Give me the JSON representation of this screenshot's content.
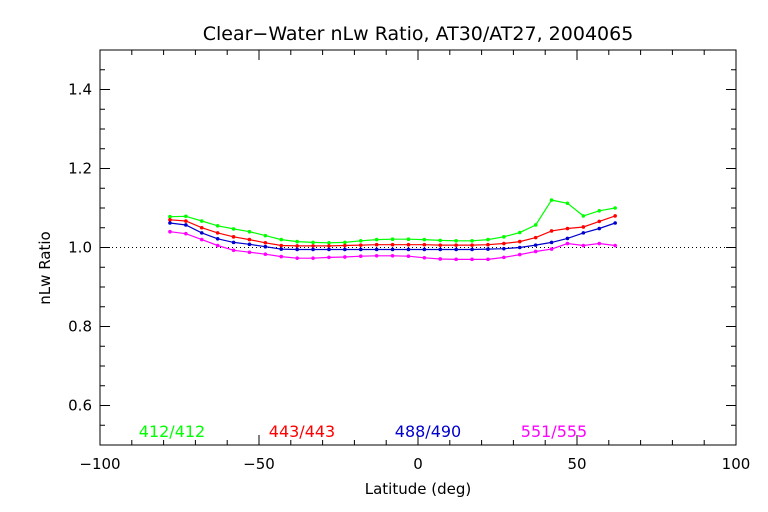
{
  "chart_data": {
    "type": "line",
    "title": "Clear−Water nLw Ratio, AT30/AT27, 2004065",
    "xlabel": "Latitude (deg)",
    "ylabel": "nLw Ratio",
    "xlim": [
      -100,
      100
    ],
    "ylim": [
      0.5,
      1.5
    ],
    "xticks": [
      -100,
      -50,
      0,
      50,
      100
    ],
    "xtick_labels": [
      "−100",
      "−50",
      "0",
      "50",
      "100"
    ],
    "yticks": [
      0.6,
      0.8,
      1.0,
      1.2,
      1.4
    ],
    "ytick_labels": [
      "0.6",
      "0.8",
      "1.0",
      "1.2",
      "1.4"
    ],
    "reference_line": 1.0,
    "grid": false,
    "legend_placement": "bottom",
    "x": [
      -78,
      -73,
      -68,
      -63,
      -58,
      -53,
      -48,
      -43,
      -38,
      -33,
      -28,
      -23,
      -18,
      -13,
      -8,
      -3,
      2,
      7,
      12,
      17,
      22,
      27,
      32,
      37,
      42,
      47,
      52,
      57,
      62
    ],
    "series": [
      {
        "name": "412/412",
        "color": "#00ff00",
        "values": [
          1.078,
          1.079,
          1.067,
          1.055,
          1.047,
          1.04,
          1.03,
          1.02,
          1.015,
          1.013,
          1.012,
          1.013,
          1.017,
          1.02,
          1.021,
          1.021,
          1.02,
          1.018,
          1.017,
          1.017,
          1.02,
          1.027,
          1.038,
          1.057,
          1.12,
          1.112,
          1.08,
          1.093,
          1.1
        ]
      },
      {
        "name": "443/443",
        "color": "#ff0000",
        "values": [
          1.07,
          1.067,
          1.05,
          1.037,
          1.027,
          1.02,
          1.012,
          1.005,
          1.004,
          1.004,
          1.004,
          1.005,
          1.006,
          1.007,
          1.007,
          1.007,
          1.007,
          1.006,
          1.006,
          1.006,
          1.007,
          1.01,
          1.015,
          1.025,
          1.042,
          1.048,
          1.052,
          1.066,
          1.08
        ]
      },
      {
        "name": "488/490",
        "color": "#0000cc",
        "values": [
          1.062,
          1.057,
          1.037,
          1.022,
          1.013,
          1.008,
          1.002,
          0.996,
          0.995,
          0.995,
          0.995,
          0.995,
          0.995,
          0.995,
          0.995,
          0.995,
          0.995,
          0.995,
          0.995,
          0.995,
          0.996,
          0.997,
          1.0,
          1.006,
          1.013,
          1.023,
          1.037,
          1.048,
          1.062
        ]
      },
      {
        "name": "551/555",
        "color": "#ff00ff",
        "values": [
          1.04,
          1.035,
          1.02,
          1.005,
          0.993,
          0.988,
          0.983,
          0.977,
          0.973,
          0.973,
          0.975,
          0.976,
          0.978,
          0.979,
          0.979,
          0.978,
          0.974,
          0.971,
          0.97,
          0.97,
          0.97,
          0.975,
          0.982,
          0.99,
          0.996,
          1.01,
          1.005,
          1.01,
          1.005
        ]
      }
    ]
  }
}
